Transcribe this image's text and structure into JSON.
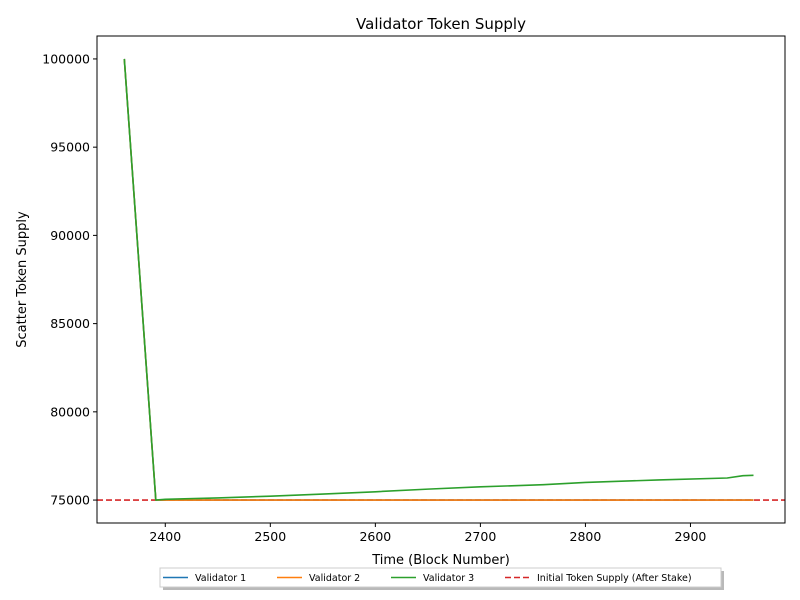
{
  "chart_data": {
    "type": "line",
    "title": "Validator Token Supply",
    "xlabel": "Time (Block Number)",
    "ylabel": "Scatter Token Supply",
    "xlim": [
      2335,
      2990
    ],
    "ylim": [
      73700,
      101300
    ],
    "xticks": [
      2400,
      2500,
      2600,
      2700,
      2800,
      2900
    ],
    "yticks": [
      75000,
      80000,
      85000,
      90000,
      95000,
      100000
    ],
    "grid": false,
    "legend_position": "bottom-center",
    "series": [
      {
        "name": "Validator 1",
        "color": "#1f77b4",
        "x": [
          2361,
          2391,
          2960
        ],
        "y": [
          100000,
          75000,
          75000
        ]
      },
      {
        "name": "Validator 2",
        "color": "#ff7f0e",
        "x": [
          2361,
          2391,
          2960
        ],
        "y": [
          100000,
          75000,
          75000
        ]
      },
      {
        "name": "Validator 3",
        "color": "#2ca02c",
        "x": [
          2361,
          2391,
          2400,
          2450,
          2500,
          2550,
          2600,
          2650,
          2700,
          2760,
          2800,
          2870,
          2935,
          2950,
          2960
        ],
        "y": [
          100000,
          75000,
          75040,
          75120,
          75220,
          75340,
          75470,
          75620,
          75750,
          75870,
          76000,
          76140,
          76250,
          76380,
          76400
        ]
      }
    ],
    "reference_lines": [
      {
        "name": "Initial Token Supply (After Stake)",
        "color": "#d62728",
        "y": 75000,
        "style": "dashed"
      }
    ]
  }
}
